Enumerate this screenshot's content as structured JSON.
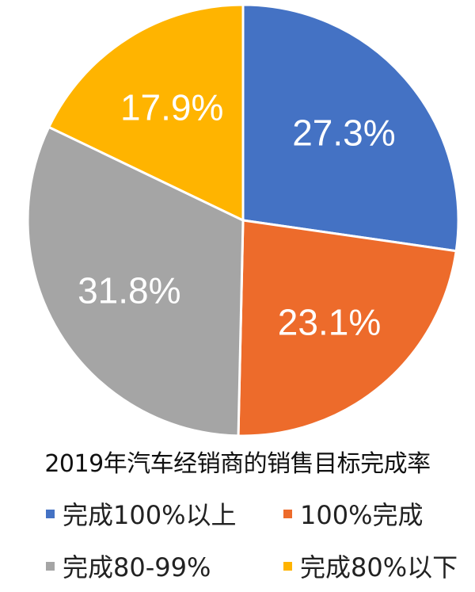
{
  "chart_data": {
    "type": "pie",
    "title": "2019年汽车经销商的销售目标完成率",
    "slices": [
      {
        "name": "完成100%以上",
        "value": 27.3,
        "label": "27.3%",
        "color": "#4472c4"
      },
      {
        "name": "100%完成",
        "value": 23.1,
        "label": "23.1%",
        "color": "#ed6b2b"
      },
      {
        "name": "完成80-99%",
        "value": 31.8,
        "label": "31.8%",
        "color": "#a5a5a5"
      },
      {
        "name": "完成80%以下",
        "value": 17.9,
        "label": "17.9%",
        "color": "#ffb400"
      }
    ],
    "legend_position": "bottom"
  }
}
